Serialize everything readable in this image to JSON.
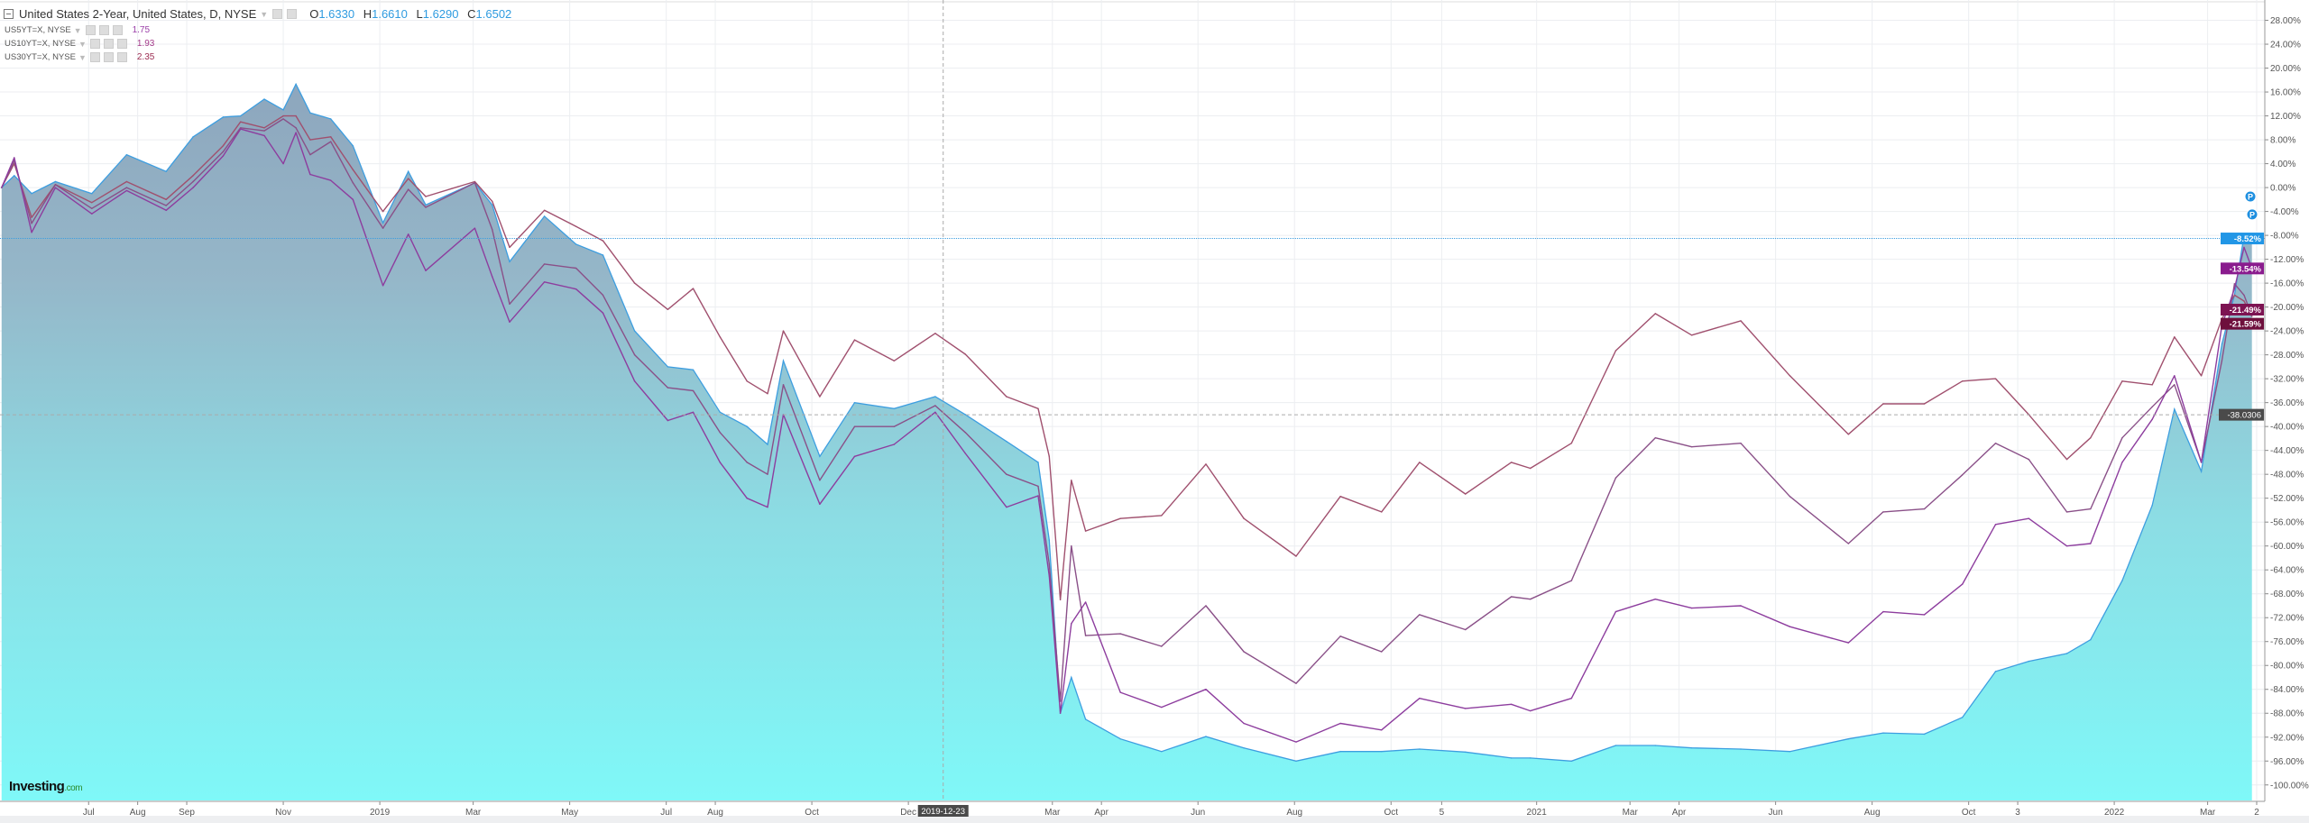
{
  "header": {
    "title": "United States 2-Year, United States, D, NYSE",
    "ohlc": [
      {
        "label": "O",
        "value": "1.6330"
      },
      {
        "label": "H",
        "value": "1.6610"
      },
      {
        "label": "L",
        "value": "1.6290"
      },
      {
        "label": "C",
        "value": "1.6502"
      }
    ]
  },
  "legend": [
    {
      "symbol": "US5YT=X, NYSE",
      "value": "1.75",
      "color": "#9b3fa8"
    },
    {
      "symbol": "US10YT=X, NYSE",
      "value": "1.93",
      "color": "#a33a8a"
    },
    {
      "symbol": "US30YT=X, NYSE",
      "value": "2.35",
      "color": "#9c2d52"
    }
  ],
  "logo": {
    "brand": "Investing",
    "suffix": ".com"
  },
  "crosshair": {
    "date": "2019-12-23",
    "value": "-38.0306"
  },
  "markers": [
    {
      "label": "P",
      "value": -1.5
    },
    {
      "label": "P",
      "value": -4.5
    }
  ],
  "chart_data": {
    "type": "line",
    "xlim": [
      "2018-05-06",
      "2022-04-01"
    ],
    "ylim": [
      -102.6,
      31.4
    ],
    "grid": true,
    "y_ticks": [
      28,
      24,
      20,
      16,
      12,
      8,
      4,
      0,
      -4,
      -8,
      -12,
      -16,
      -20,
      -24,
      -28,
      -32,
      -36,
      -40,
      -44,
      -48,
      -52,
      -56,
      -60,
      -64,
      -68,
      -72,
      -76,
      -80,
      -84,
      -88,
      -92,
      -96,
      -100
    ],
    "y_tick_format": "%",
    "x_ticks": [
      {
        "label": "Jul",
        "date": "2018-07-01"
      },
      {
        "label": "Aug",
        "date": "2018-08-01"
      },
      {
        "label": "Sep",
        "date": "2018-09-01"
      },
      {
        "label": "Nov",
        "date": "2018-11-01"
      },
      {
        "label": "2019",
        "date": "2019-01-01"
      },
      {
        "label": "Mar",
        "date": "2019-03-01"
      },
      {
        "label": "May",
        "date": "2019-05-01"
      },
      {
        "label": "Jul",
        "date": "2019-07-01"
      },
      {
        "label": "Aug",
        "date": "2019-08-01"
      },
      {
        "label": "Oct",
        "date": "2019-10-01"
      },
      {
        "label": "Dec",
        "date": "2019-12-01"
      },
      {
        "label": "Mar",
        "date": "2020-03-01"
      },
      {
        "label": "Apr",
        "date": "2020-04-01"
      },
      {
        "label": "Jun",
        "date": "2020-06-01"
      },
      {
        "label": "Aug",
        "date": "2020-08-01"
      },
      {
        "label": "Oct",
        "date": "2020-10-01"
      },
      {
        "label": "5",
        "date": "2020-11-02"
      },
      {
        "label": "2021",
        "date": "2021-01-01"
      },
      {
        "label": "Mar",
        "date": "2021-03-01"
      },
      {
        "label": "Apr",
        "date": "2021-04-01"
      },
      {
        "label": "Jun",
        "date": "2021-06-01"
      },
      {
        "label": "Aug",
        "date": "2021-08-01"
      },
      {
        "label": "Oct",
        "date": "2021-10-01"
      },
      {
        "label": "3",
        "date": "2021-11-01"
      },
      {
        "label": "2022",
        "date": "2022-01-01"
      },
      {
        "label": "Mar",
        "date": "2022-03-01"
      },
      {
        "label": "2",
        "date": "2022-04-01"
      }
    ],
    "x": [
      "2018-05-07",
      "2018-05-15",
      "2018-05-26",
      "2018-06-10",
      "2018-07-03",
      "2018-07-25",
      "2018-08-19",
      "2018-09-05",
      "2018-09-24",
      "2018-10-05",
      "2018-10-20",
      "2018-11-01",
      "2018-11-09",
      "2018-11-18",
      "2018-12-01",
      "2018-12-15",
      "2019-01-03",
      "2019-01-19",
      "2019-01-30",
      "2019-03-02",
      "2019-03-13",
      "2019-03-24",
      "2019-04-15",
      "2019-05-05",
      "2019-05-22",
      "2019-06-11",
      "2019-07-02",
      "2019-07-18",
      "2019-08-04",
      "2019-08-21",
      "2019-09-03",
      "2019-09-13",
      "2019-10-06",
      "2019-10-28",
      "2019-11-22",
      "2019-12-18",
      "2020-01-06",
      "2020-02-01",
      "2020-02-21",
      "2020-02-28",
      "2020-03-06",
      "2020-03-13",
      "2020-03-22",
      "2020-04-13",
      "2020-05-09",
      "2020-06-06",
      "2020-06-30",
      "2020-08-02",
      "2020-08-30",
      "2020-09-25",
      "2020-10-19",
      "2020-11-17",
      "2020-12-16",
      "2020-12-28",
      "2021-01-23",
      "2021-02-20",
      "2021-03-17",
      "2021-04-09",
      "2021-05-10",
      "2021-06-10",
      "2021-07-17",
      "2021-08-08",
      "2021-09-03",
      "2021-09-27",
      "2021-10-18",
      "2021-11-08",
      "2021-12-02",
      "2021-12-17",
      "2022-01-06",
      "2022-01-25",
      "2022-02-08",
      "2022-02-25",
      "2022-03-10",
      "2022-03-18",
      "2022-03-24",
      "2022-03-29"
    ],
    "series": [
      {
        "name": "United States 2-Year",
        "style": "area",
        "color": "#3d9ee0",
        "last_label": "-8.52%",
        "label_bg": "#2196e6",
        "values": [
          0,
          2,
          -1,
          1,
          -1,
          5.5,
          2.7,
          8.5,
          11.8,
          12,
          14.8,
          13,
          17.3,
          12.5,
          11.5,
          7,
          -5.9,
          2.7,
          -2.9,
          0.8,
          -2.9,
          -12.4,
          -4.8,
          -9.5,
          -11.3,
          -24,
          -30,
          -30.5,
          -37.6,
          -40,
          -43,
          -29,
          -45,
          -36,
          -37,
          -35,
          -38,
          -42.5,
          -46,
          -59,
          -88,
          -82,
          -89,
          -92.3,
          -94.4,
          -91.9,
          -93.8,
          -96,
          -94.4,
          -94.4,
          -94,
          -94.5,
          -95.5,
          -95.5,
          -96,
          -93.4,
          -93.4,
          -93.8,
          -94,
          -94.4,
          -92.3,
          -91.3,
          -91.5,
          -88.7,
          -81,
          -79.3,
          -78,
          -75.7,
          -65.8,
          -53.2,
          -37.1,
          -47.5,
          -26.2,
          -18,
          -8,
          -8.52
        ]
      },
      {
        "name": "US30YT=X, NYSE",
        "style": "line",
        "color": "#a0506e",
        "last_label": "-21.59%",
        "label_bg": "#6e0f3c",
        "values": [
          0,
          4,
          -5,
          0.5,
          -2.5,
          1,
          -2,
          2,
          7,
          11,
          10,
          12,
          12,
          8,
          8.5,
          3,
          -4,
          1.5,
          -1.5,
          1,
          -2.3,
          -10,
          -3.8,
          -6.5,
          -8.9,
          -16,
          -20.4,
          -16.9,
          -25,
          -32.4,
          -34.5,
          -24,
          -35,
          -25.5,
          -29,
          -24.4,
          -27.9,
          -35,
          -37,
          -45,
          -69,
          -49,
          -57.5,
          -55.4,
          -54.9,
          -46.3,
          -55.4,
          -61.7,
          -51.7,
          -54.3,
          -46,
          -51.3,
          -46,
          -47,
          -42.8,
          -27.3,
          -21.1,
          -24.7,
          -22.3,
          -31.5,
          -41.3,
          -36.2,
          -36.2,
          -32.4,
          -32,
          -38,
          -45.5,
          -41.9,
          -32.4,
          -33,
          -25,
          -31.5,
          -22,
          -18,
          -19,
          -21.59
        ]
      },
      {
        "name": "US10YT=X, NYSE",
        "style": "line",
        "color": "#8a5088",
        "last_label": "-21.49%",
        "label_bg": "#7d1352",
        "values": [
          0,
          4.5,
          -6,
          0.5,
          -3.5,
          0,
          -3,
          1,
          6,
          10,
          9.5,
          11.5,
          10,
          5.5,
          7.7,
          0.8,
          -6.8,
          -0.3,
          -3.3,
          0.8,
          -7,
          -19.5,
          -12.8,
          -13.5,
          -18,
          -28,
          -33.5,
          -34,
          -41,
          -46,
          -48,
          -33,
          -49,
          -40,
          -40,
          -36.5,
          -41,
          -48,
          -50,
          -63,
          -86,
          -60,
          -75,
          -74.7,
          -76.8,
          -70,
          -77.7,
          -83,
          -75.1,
          -77.7,
          -71.5,
          -74,
          -68.5,
          -68.9,
          -65.8,
          -48.6,
          -41.9,
          -43.4,
          -42.8,
          -51.7,
          -59.6,
          -54.3,
          -53.8,
          -48.1,
          -42.8,
          -45.5,
          -54.3,
          -53.8,
          -41.9,
          -36.7,
          -33,
          -46,
          -29,
          -16.1,
          -18,
          -21.49
        ]
      },
      {
        "name": "US5YT=X, NYSE",
        "style": "line",
        "color": "#8d3d9e",
        "last_label": "-13.54%",
        "label_bg": "#8a1c8e",
        "values": [
          0,
          5,
          -7.5,
          0,
          -4.4,
          -0.5,
          -3.8,
          0,
          5.3,
          9.8,
          8.7,
          4,
          9.2,
          2.2,
          1.2,
          -2,
          -16.4,
          -7.8,
          -13.9,
          -6.8,
          -14.9,
          -22.5,
          -15.8,
          -17,
          -21,
          -32.4,
          -39,
          -37.6,
          -46,
          -52,
          -53.5,
          -38,
          -53,
          -45,
          -43,
          -37.6,
          -44.5,
          -53.5,
          -51.6,
          -65,
          -88,
          -73,
          -69.4,
          -84.5,
          -87,
          -84,
          -89.7,
          -92.8,
          -89.7,
          -90.8,
          -85.5,
          -87.2,
          -86.5,
          -87.6,
          -85.5,
          -71,
          -68.9,
          -70.4,
          -70,
          -73.5,
          -76.2,
          -71,
          -71.5,
          -66.4,
          -56.4,
          -55.4,
          -60,
          -59.6,
          -46,
          -38.8,
          -31.5,
          -46,
          -23.1,
          -16.9,
          -10,
          -13.54
        ]
      }
    ]
  }
}
